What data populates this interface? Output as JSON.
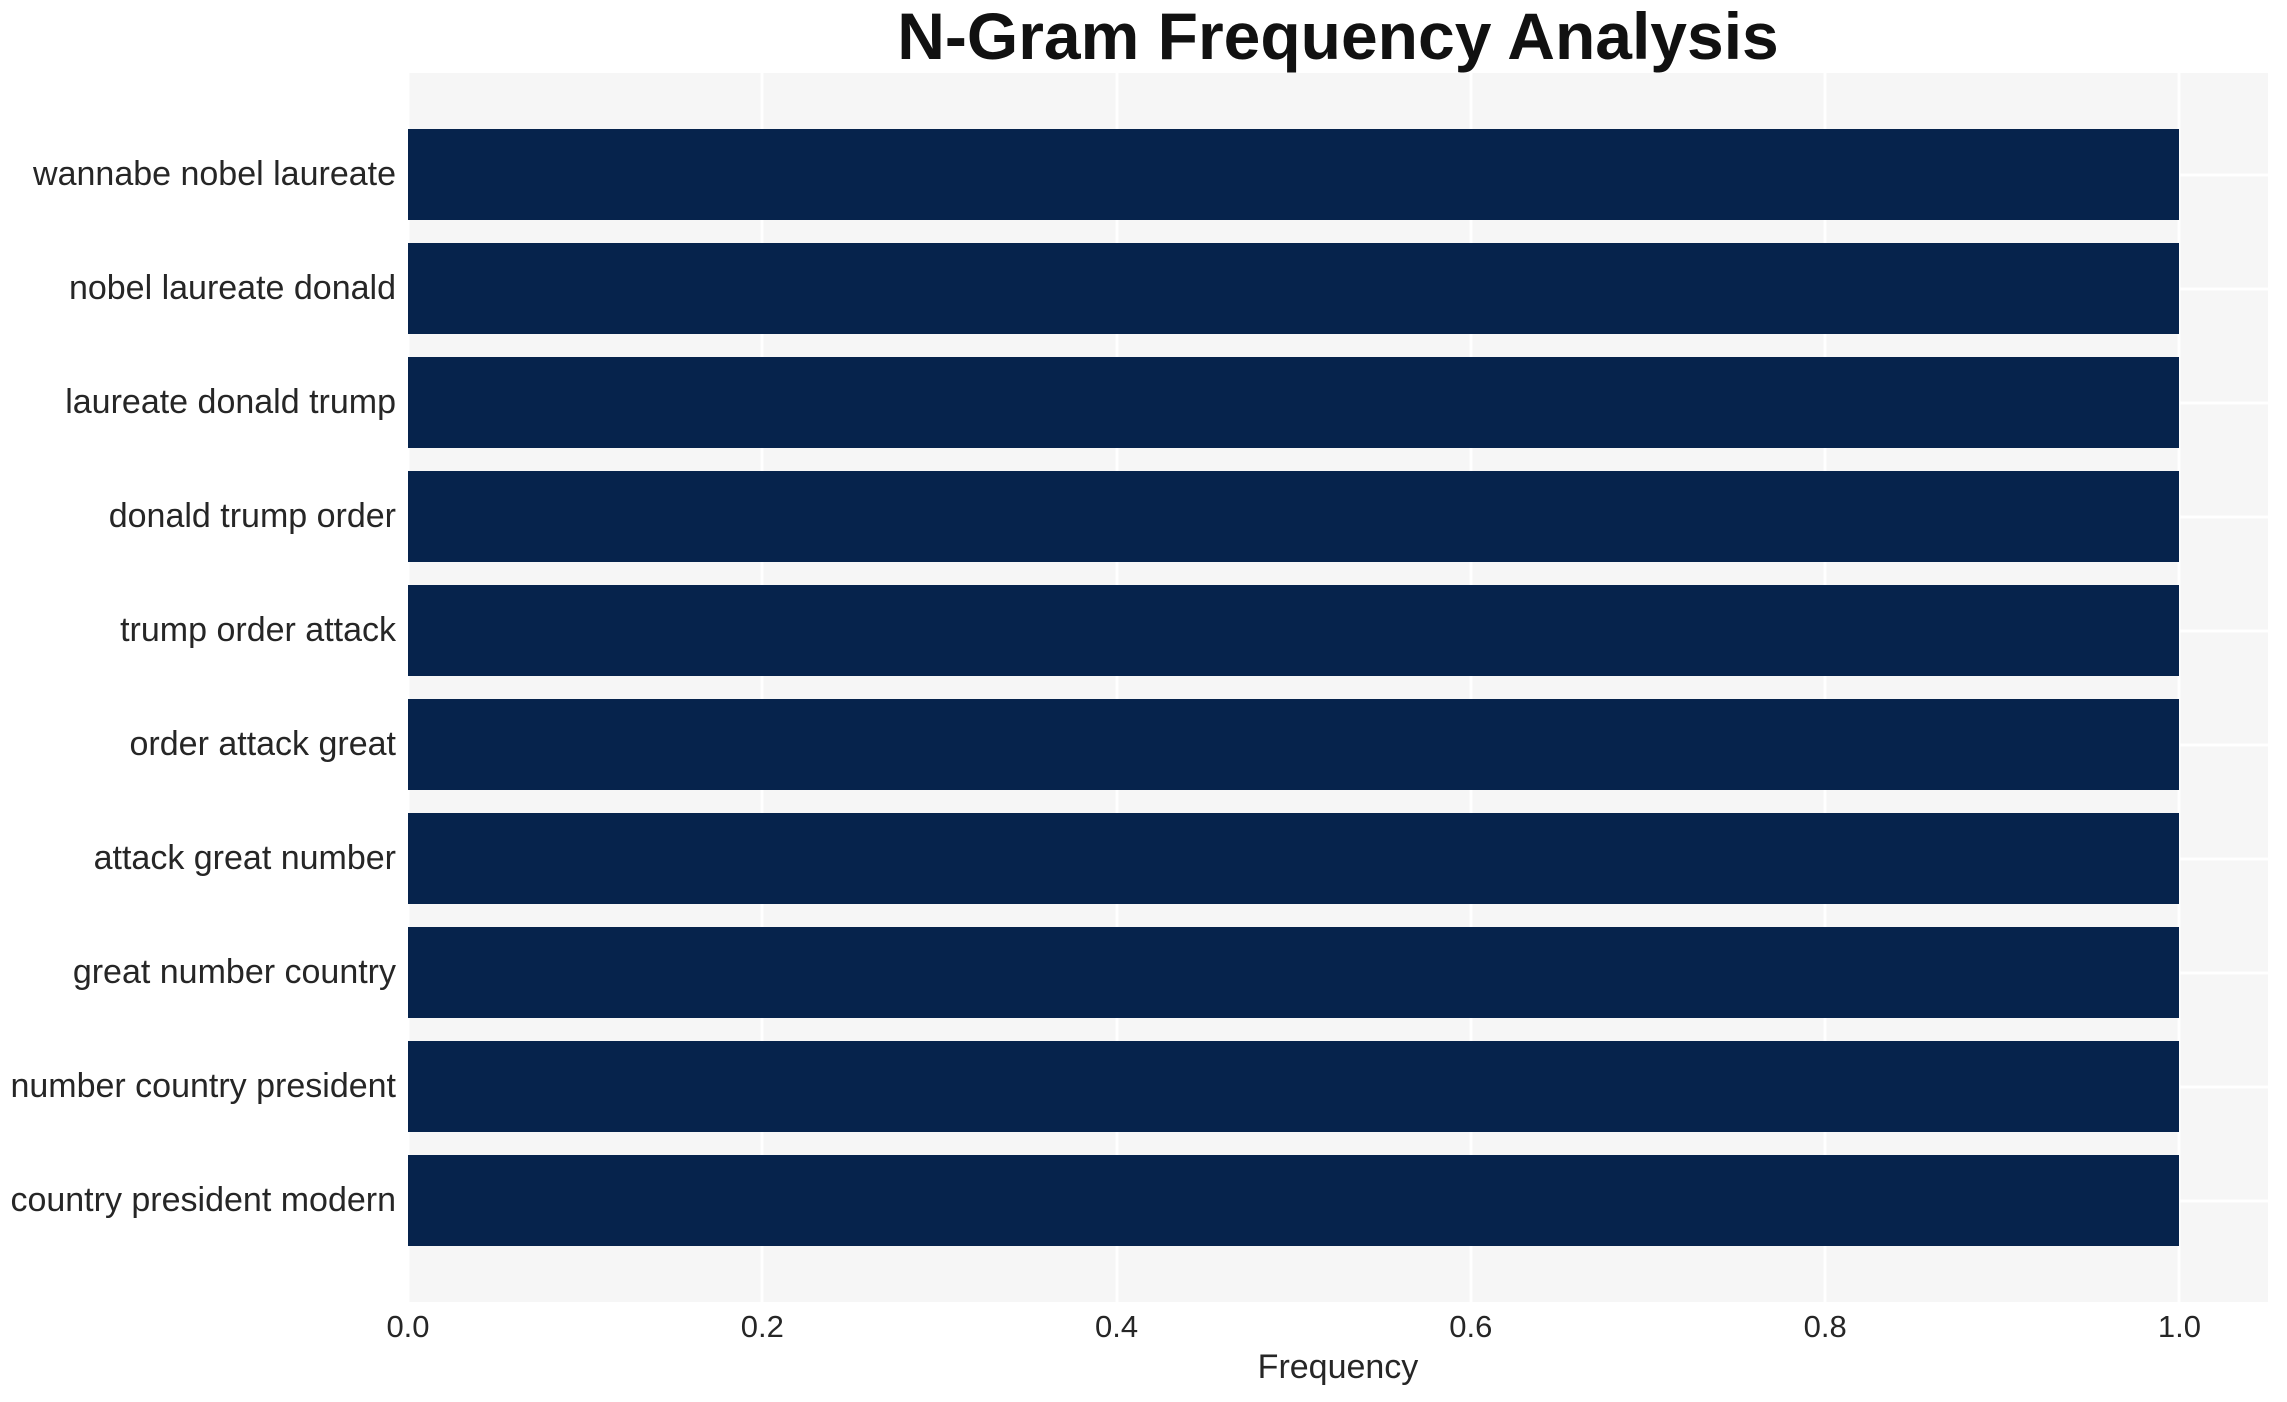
{
  "figure": {
    "title": "N-Gram Frequency Analysis",
    "xlabel": "Frequency"
  },
  "chart_data": {
    "type": "bar",
    "orientation": "horizontal",
    "title": "N-Gram Frequency Analysis",
    "xlabel": "Frequency",
    "ylabel": "",
    "categories": [
      "wannabe nobel laureate",
      "nobel laureate donald",
      "laureate donald trump",
      "donald trump order",
      "trump order attack",
      "order attack great",
      "attack great number",
      "great number country",
      "number country president",
      "country president modern"
    ],
    "values": [
      1.0,
      1.0,
      1.0,
      1.0,
      1.0,
      1.0,
      1.0,
      1.0,
      1.0,
      1.0
    ],
    "xlim": [
      0,
      1.05
    ],
    "xticks": [
      0.0,
      0.2,
      0.4,
      0.6,
      0.8,
      1.0
    ],
    "xtick_labels": [
      "0.0",
      "0.2",
      "0.4",
      "0.6",
      "0.8",
      "1.0"
    ],
    "grid": true,
    "grid_color": "#ffffff",
    "legend": false,
    "bar_color": "#06234c",
    "plot_bg": "#f6f6f6",
    "text_color": "#262626",
    "title_color": "#111111"
  }
}
